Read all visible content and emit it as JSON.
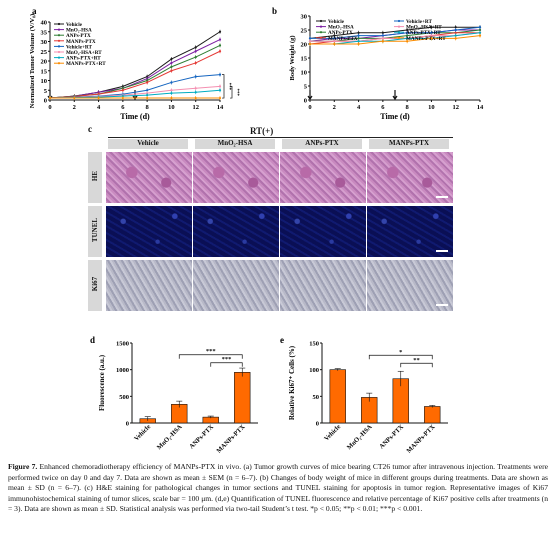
{
  "figure": {
    "panel_a": {
      "letter": "a",
      "ylabel": "Normalized Tumor Volume (V/V₀)",
      "xlabel": "Time (d)",
      "sig_marks": [
        "***",
        "***"
      ]
    },
    "panel_b": {
      "letter": "b",
      "ylabel": "Body Weight (g)",
      "xlabel": "Time (d)"
    },
    "panel_c": {
      "letter": "c",
      "top_label": "RT(+)",
      "columns": [
        "Vehicle",
        "MnO₂-HSA",
        "ANPs-PTX",
        "MANPs-PTX"
      ],
      "rows": [
        "HE",
        "TUNEL",
        "Ki67"
      ]
    },
    "panel_d": {
      "letter": "d",
      "ylabel": "Fluorescence (a.u.)",
      "sig_marks": [
        "***",
        "***"
      ]
    },
    "panel_e": {
      "letter": "e",
      "ylabel": "Relative Ki67⁺ Cells (%)",
      "sig_marks": [
        "*",
        "**"
      ]
    },
    "caption": {
      "label": "Figure 7.",
      "text": " Enhanced chemoradiotherapy efficiency of MANPs-PTX in vivo. (a) Tumor growth curves of mice bearing CT26 tumor after intravenous injection. Treatments were performed twice on day 0 and day 7. Data are shown as mean ± SEM (n = 6–7). (b) Changes of body weight of mice in different groups during treatments. Data are shown as mean ± SD (n = 6–7). (c) H&E staining for pathological changes in tumor sections and TUNEL staining for apoptosis in tumor region. Representative images of Ki67 immunohistochemical staining of tumor slices, scale bar = 100 μm. (d,e) Quantification of TUNEL fluorescence and relative percentage of Ki67 positive cells after treatments (n = 3). Data are shown as mean ± SD. Statistical analysis was performed via two-tail Student’s t test. *p < 0.05; **p < 0.01; ***p < 0.001."
    }
  },
  "chart_data": [
    {
      "type": "line",
      "ylabel": "Normalized Tumor Volume (V/V₀)",
      "xlabel": "Time (d)",
      "x": [
        0,
        2,
        4,
        6,
        8,
        10,
        12,
        14
      ],
      "xticks": [
        "0",
        "2",
        "4",
        "6",
        "8",
        "10",
        "12",
        "14"
      ],
      "yticks": [
        0,
        5,
        10,
        15,
        20,
        25,
        30,
        35,
        40
      ],
      "ylim": [
        0,
        40
      ],
      "series": [
        {
          "name": "Vehicle",
          "color": "#1a1a1a",
          "values": [
            1,
            2,
            4,
            7,
            12,
            21,
            27,
            35
          ]
        },
        {
          "name": "MnO₂-HSA",
          "color": "#7b1fa2",
          "values": [
            1,
            2,
            4,
            6,
            11,
            19,
            25,
            31
          ]
        },
        {
          "name": "ANPs-PTX",
          "color": "#2e7d32",
          "values": [
            1,
            2,
            3,
            6,
            10,
            17,
            22,
            28
          ]
        },
        {
          "name": "MANPs-PTX",
          "color": "#e53935",
          "values": [
            1,
            1.8,
            3,
            5,
            9,
            15,
            19,
            25
          ]
        },
        {
          "name": "Vehicle+RT",
          "color": "#1565c0",
          "values": [
            1,
            1.5,
            2,
            3,
            5,
            9,
            12,
            13
          ]
        },
        {
          "name": "MnO₂-HSA+RT",
          "color": "#f48fb1",
          "values": [
            1,
            1.3,
            1.8,
            2.5,
            3.5,
            5,
            6,
            7
          ]
        },
        {
          "name": "ANPs-PTX+RT",
          "color": "#00acc1",
          "values": [
            1,
            1.2,
            1.5,
            2,
            2.5,
            3.5,
            4,
            5
          ]
        },
        {
          "name": "MANPs-PTX+RT",
          "color": "#fb8c00",
          "values": [
            1,
            1,
            1,
            1,
            1,
            1,
            1,
            1
          ]
        }
      ]
    },
    {
      "type": "line",
      "ylabel": "Body Weight (g)",
      "xlabel": "Time (d)",
      "x": [
        0,
        2,
        4,
        6,
        8,
        10,
        12,
        14
      ],
      "xticks": [
        "0",
        "2",
        "4",
        "6",
        "8",
        "10",
        "12",
        "14"
      ],
      "yticks": [
        0,
        5,
        10,
        15,
        20,
        25,
        30
      ],
      "ylim": [
        0,
        30
      ],
      "series": [
        {
          "name": "Vehicle",
          "color": "#1a1a1a",
          "values": [
            22,
            23,
            24,
            24,
            25,
            26,
            26,
            26
          ]
        },
        {
          "name": "MnO₂-HSA",
          "color": "#7b1fa2",
          "values": [
            21,
            22,
            22,
            23,
            24,
            24,
            25,
            25
          ]
        },
        {
          "name": "ANPs-PTX",
          "color": "#2e7d32",
          "values": [
            21,
            21,
            22,
            22,
            23,
            24,
            24,
            25
          ]
        },
        {
          "name": "MANPs-PTX",
          "color": "#e53935",
          "values": [
            20,
            21,
            21,
            22,
            22,
            23,
            24,
            24
          ]
        },
        {
          "name": "Vehicle+RT",
          "color": "#1565c0",
          "values": [
            22,
            22,
            23,
            23,
            24,
            24,
            25,
            26
          ]
        },
        {
          "name": "MnO₂-HSA+RT",
          "color": "#f48fb1",
          "values": [
            21,
            21,
            21,
            22,
            22,
            23,
            23,
            24
          ]
        },
        {
          "name": "ANPs-PTX+RT",
          "color": "#00acc1",
          "values": [
            20,
            20,
            21,
            21,
            22,
            22,
            23,
            24
          ]
        },
        {
          "name": "MANPs-PTX+RT",
          "color": "#fb8c00",
          "values": [
            20,
            20,
            20,
            21,
            21,
            22,
            22,
            23
          ]
        }
      ]
    },
    {
      "type": "bar",
      "ylabel": "Fluorescence (a.u.)",
      "categories": [
        "Vehicle",
        "MnO₂-HSA",
        "ANPs-PTX",
        "MANPs-PTX"
      ],
      "values": [
        80,
        350,
        110,
        950
      ],
      "errors": [
        40,
        60,
        20,
        80
      ],
      "yticks": [
        0,
        500,
        1000,
        1500
      ],
      "ylim": [
        0,
        1500
      ],
      "bar_color": "#ff6a00"
    },
    {
      "type": "bar",
      "ylabel": "Relative Ki67⁺ Cells (%)",
      "categories": [
        "Vehicle",
        "MnO₂-HSA",
        "ANPs-PTX",
        "MANPs-PTX"
      ],
      "values": [
        100,
        48,
        83,
        31
      ],
      "errors": [
        2,
        8,
        14,
        2
      ],
      "yticks": [
        0,
        50,
        100,
        150
      ],
      "ylim": [
        0,
        150
      ],
      "bar_color": "#ff6a00"
    }
  ]
}
